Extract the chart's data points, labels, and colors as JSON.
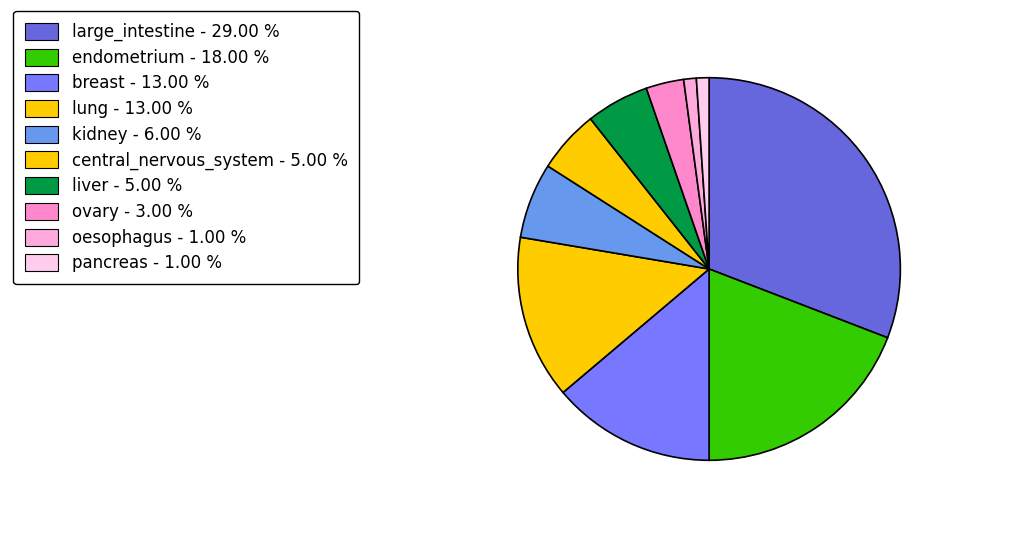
{
  "labels": [
    "large_intestine - 29.00 %",
    "endometrium - 18.00 %",
    "breast - 13.00 %",
    "lung - 13.00 %",
    "kidney - 6.00 %",
    "central_nervous_system - 5.00 %",
    "liver - 5.00 %",
    "ovary - 3.00 %",
    "oesophagus - 1.00 %",
    "pancreas - 1.00 %"
  ],
  "values": [
    29,
    18,
    13,
    13,
    6,
    5,
    5,
    3,
    1,
    1
  ],
  "colors": [
    "#6666dd",
    "#33cc00",
    "#7777ff",
    "#ffcc00",
    "#6699ee",
    "#ffcc00",
    "#009944",
    "#ff88cc",
    "#ffaadd",
    "#ffccee"
  ],
  "figsize": [
    10.13,
    5.38
  ],
  "dpi": 100,
  "startangle": 90,
  "legend_fontsize": 12
}
